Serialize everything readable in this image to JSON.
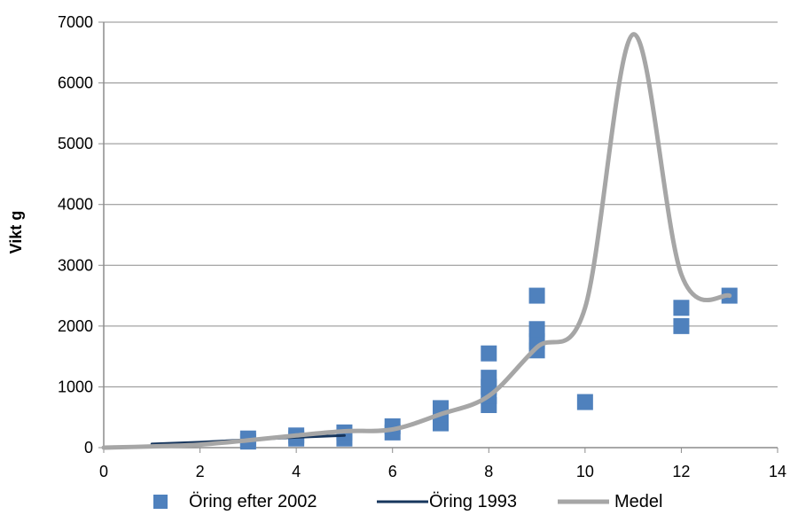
{
  "chart_data": {
    "type": "scatter",
    "ylabel": "Vikt g",
    "xlim": [
      0,
      14
    ],
    "ylim": [
      0,
      7000
    ],
    "x_ticks": [
      0,
      2,
      4,
      6,
      8,
      10,
      12,
      14
    ],
    "y_ticks": [
      0,
      1000,
      2000,
      3000,
      4000,
      5000,
      6000,
      7000
    ],
    "grid": "horizontal",
    "legend_position": "bottom",
    "series": [
      {
        "name": "Öring efter 2002",
        "kind": "scatter",
        "marker": "square",
        "color": "#4f81bd",
        "points": [
          {
            "x": 3,
            "y": 100
          },
          {
            "x": 3,
            "y": 150
          },
          {
            "x": 4,
            "y": 150
          },
          {
            "x": 4,
            "y": 200
          },
          {
            "x": 5,
            "y": 150
          },
          {
            "x": 5,
            "y": 250
          },
          {
            "x": 6,
            "y": 250
          },
          {
            "x": 6,
            "y": 350
          },
          {
            "x": 7,
            "y": 400
          },
          {
            "x": 7,
            "y": 550
          },
          {
            "x": 7,
            "y": 650
          },
          {
            "x": 8,
            "y": 700
          },
          {
            "x": 8,
            "y": 850
          },
          {
            "x": 8,
            "y": 1000
          },
          {
            "x": 8,
            "y": 1150
          },
          {
            "x": 8,
            "y": 1550
          },
          {
            "x": 9,
            "y": 1600
          },
          {
            "x": 9,
            "y": 1750
          },
          {
            "x": 9,
            "y": 1950
          },
          {
            "x": 9,
            "y": 2500
          },
          {
            "x": 10,
            "y": 750
          },
          {
            "x": 12,
            "y": 2000
          },
          {
            "x": 12,
            "y": 2300
          },
          {
            "x": 13,
            "y": 2500
          }
        ]
      },
      {
        "name": "Öring 1993",
        "kind": "line",
        "color": "#17365d",
        "points": [
          {
            "x": 1,
            "y": 60
          },
          {
            "x": 2,
            "y": 90
          },
          {
            "x": 3,
            "y": 130
          },
          {
            "x": 4,
            "y": 170
          },
          {
            "x": 5,
            "y": 200
          }
        ]
      },
      {
        "name": "Medel",
        "kind": "line",
        "smooth": true,
        "color": "#a6a6a6",
        "points": [
          {
            "x": 0,
            "y": 0
          },
          {
            "x": 1,
            "y": 20
          },
          {
            "x": 2,
            "y": 50
          },
          {
            "x": 3,
            "y": 120
          },
          {
            "x": 4,
            "y": 200
          },
          {
            "x": 5,
            "y": 270
          },
          {
            "x": 6,
            "y": 300
          },
          {
            "x": 7,
            "y": 550
          },
          {
            "x": 8,
            "y": 850
          },
          {
            "x": 9,
            "y": 1650
          },
          {
            "x": 10,
            "y": 2300
          },
          {
            "x": 11,
            "y": 6800
          },
          {
            "x": 12,
            "y": 2850
          },
          {
            "x": 13,
            "y": 2500
          }
        ]
      }
    ]
  }
}
